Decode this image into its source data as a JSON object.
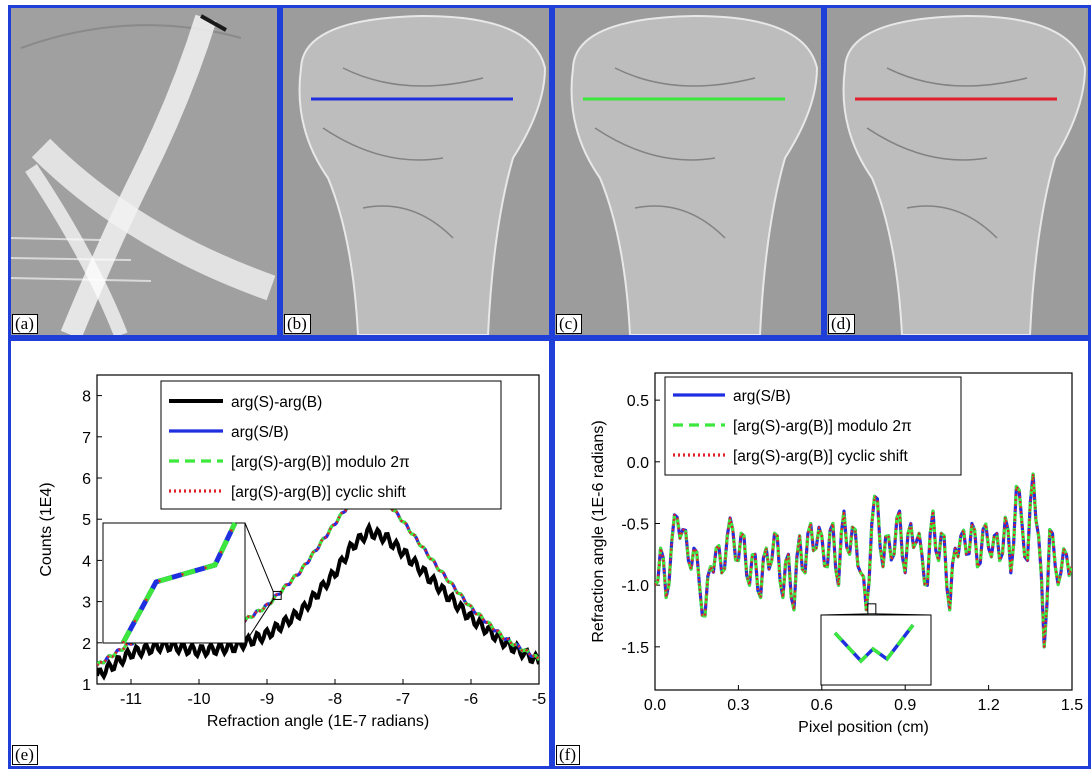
{
  "panels": {
    "a": {
      "label": "(a)"
    },
    "b": {
      "label": "(b)"
    },
    "c": {
      "label": "(c)"
    },
    "d": {
      "label": "(d)"
    },
    "e": {
      "label": "(e)"
    },
    "f": {
      "label": "(f)"
    }
  },
  "colors": {
    "border": "#1f3fd8",
    "black": "#000000",
    "blue": "#1f2fe0",
    "green": "#3ce83c",
    "red": "#e0202a"
  },
  "profile_line_colors": {
    "b": "#1f2fe0",
    "c": "#3ce83c",
    "d": "#e0202a"
  },
  "chart_data": [
    {
      "type": "line",
      "panel": "e",
      "xlabel": "Refraction angle (1E-7 radians)",
      "ylabel": "Counts (1E4)",
      "xlim": [
        -11.5,
        -5
      ],
      "ylim": [
        1,
        8.5
      ],
      "xticks": [
        -11,
        -10,
        -9,
        -8,
        -7,
        -6,
        -5
      ],
      "yticks": [
        1,
        2,
        3,
        4,
        5,
        6,
        7,
        8
      ],
      "legend_position": "top-center",
      "inset": true,
      "series": [
        {
          "name": "arg(S)-arg(B)",
          "color": "#000000",
          "style": "solid",
          "x": [
            -11.5,
            -11.0,
            -10.5,
            -10.0,
            -9.5,
            -9.0,
            -8.5,
            -8.0,
            -7.75,
            -7.5,
            -7.25,
            -7.0,
            -6.5,
            -6.0,
            -5.5,
            -5.0
          ],
          "y": [
            1.2,
            1.75,
            1.95,
            1.8,
            1.9,
            2.2,
            2.75,
            3.7,
            4.35,
            4.7,
            4.55,
            4.2,
            3.4,
            2.6,
            2.0,
            1.55
          ],
          "ripple": 0.13
        },
        {
          "name": "arg(S/B)",
          "color": "#1f2fe0",
          "style": "solid",
          "x": [
            -11.5,
            -11.0,
            -10.5,
            -10.0,
            -9.5,
            -9.0,
            -8.5,
            -8.0,
            -7.75,
            -7.5,
            -7.25,
            -7.0,
            -6.5,
            -6.0,
            -5.5,
            -5.0
          ],
          "y": [
            1.45,
            2.0,
            2.2,
            2.15,
            2.35,
            2.9,
            3.75,
            4.9,
            5.45,
            5.65,
            5.45,
            4.95,
            3.85,
            2.85,
            2.1,
            1.6
          ],
          "ripple": 0.04
        },
        {
          "name": "[arg(S)-arg(B)] modulo 2π",
          "color": "#3ce83c",
          "style": "dashed",
          "x": [
            -11.5,
            -11.0,
            -10.5,
            -10.0,
            -9.5,
            -9.0,
            -8.5,
            -8.0,
            -7.75,
            -7.5,
            -7.25,
            -7.0,
            -6.5,
            -6.0,
            -5.5,
            -5.0
          ],
          "y": [
            1.45,
            2.0,
            2.2,
            2.15,
            2.35,
            2.9,
            3.75,
            4.9,
            5.45,
            5.65,
            5.45,
            4.95,
            3.85,
            2.85,
            2.1,
            1.6
          ],
          "ripple": 0.04
        },
        {
          "name": "[arg(S)-arg(B)] cyclic shift",
          "color": "#e0202a",
          "style": "dotted",
          "x": [
            -11.5,
            -11.0,
            -10.5,
            -10.0,
            -9.5,
            -9.0,
            -8.5,
            -8.0,
            -7.75,
            -7.5,
            -7.25,
            -7.0,
            -6.5,
            -6.0,
            -5.5,
            -5.0
          ],
          "y": [
            1.45,
            2.0,
            2.2,
            2.15,
            2.35,
            2.9,
            3.75,
            4.9,
            5.45,
            5.65,
            5.45,
            4.95,
            3.85,
            2.85,
            2.1,
            1.6
          ],
          "ripple": 0.04
        }
      ]
    },
    {
      "type": "line",
      "panel": "f",
      "xlabel": "Pixel position (cm)",
      "ylabel": "Refraction angle (1E-6 radians)",
      "xlim": [
        0,
        1.5
      ],
      "ylim": [
        -1.85,
        0.72
      ],
      "xticks": [
        0.0,
        0.3,
        0.6,
        0.9,
        1.2,
        1.5
      ],
      "yticks": [
        0.5,
        0.0,
        -0.5,
        -1.0,
        -1.5
      ],
      "legend_position": "top-left",
      "inset": true,
      "series": [
        {
          "name": "arg(S/B)",
          "color": "#1f2fe0",
          "style": "solid"
        },
        {
          "name": "[arg(S)-arg(B)] modulo 2π",
          "color": "#3ce83c",
          "style": "dashed"
        },
        {
          "name": "[arg(S)-arg(B)] cyclic shift",
          "color": "#e0202a",
          "style": "dotted"
        }
      ],
      "profile": {
        "x": [
          0.0,
          0.02,
          0.04,
          0.06,
          0.08,
          0.1,
          0.12,
          0.14,
          0.16,
          0.18,
          0.2,
          0.22,
          0.24,
          0.26,
          0.28,
          0.3,
          0.32,
          0.34,
          0.36,
          0.38,
          0.4,
          0.42,
          0.44,
          0.46,
          0.48,
          0.5,
          0.52,
          0.54,
          0.56,
          0.58,
          0.6,
          0.62,
          0.64,
          0.66,
          0.68,
          0.7,
          0.72,
          0.74,
          0.76,
          0.78,
          0.8,
          0.82,
          0.84,
          0.86,
          0.88,
          0.9,
          0.92,
          0.94,
          0.96,
          0.98,
          1.0,
          1.02,
          1.04,
          1.06,
          1.08,
          1.1,
          1.12,
          1.14,
          1.16,
          1.18,
          1.2,
          1.22,
          1.24,
          1.26,
          1.28,
          1.3,
          1.32,
          1.34,
          1.36,
          1.38,
          1.4,
          1.42,
          1.44,
          1.46,
          1.48,
          1.5
        ],
        "y": [
          -1.0,
          -0.7,
          -1.1,
          -0.65,
          -0.45,
          -0.55,
          -0.8,
          -0.7,
          -1.0,
          -1.25,
          -0.85,
          -0.7,
          -0.9,
          -0.6,
          -0.55,
          -0.8,
          -0.6,
          -1.0,
          -0.75,
          -1.1,
          -0.7,
          -0.8,
          -0.6,
          -1.1,
          -0.75,
          -1.2,
          -0.6,
          -0.9,
          -0.5,
          -0.7,
          -0.6,
          -0.85,
          -0.5,
          -1.0,
          -0.4,
          -0.75,
          -0.55,
          -0.9,
          -1.2,
          -0.5,
          -0.3,
          -0.85,
          -0.6,
          -0.75,
          -0.4,
          -0.9,
          -0.5,
          -0.65,
          -0.75,
          -1.0,
          -0.4,
          -0.8,
          -0.6,
          -1.2,
          -0.7,
          -0.6,
          -0.75,
          -0.5,
          -0.85,
          -0.55,
          -0.7,
          -0.6,
          -0.8,
          -0.45,
          -0.9,
          -0.2,
          -0.5,
          -0.8,
          -0.1,
          -0.6,
          -1.5,
          -0.55,
          -0.85,
          -0.9,
          -0.75,
          -0.85
        ]
      }
    }
  ]
}
